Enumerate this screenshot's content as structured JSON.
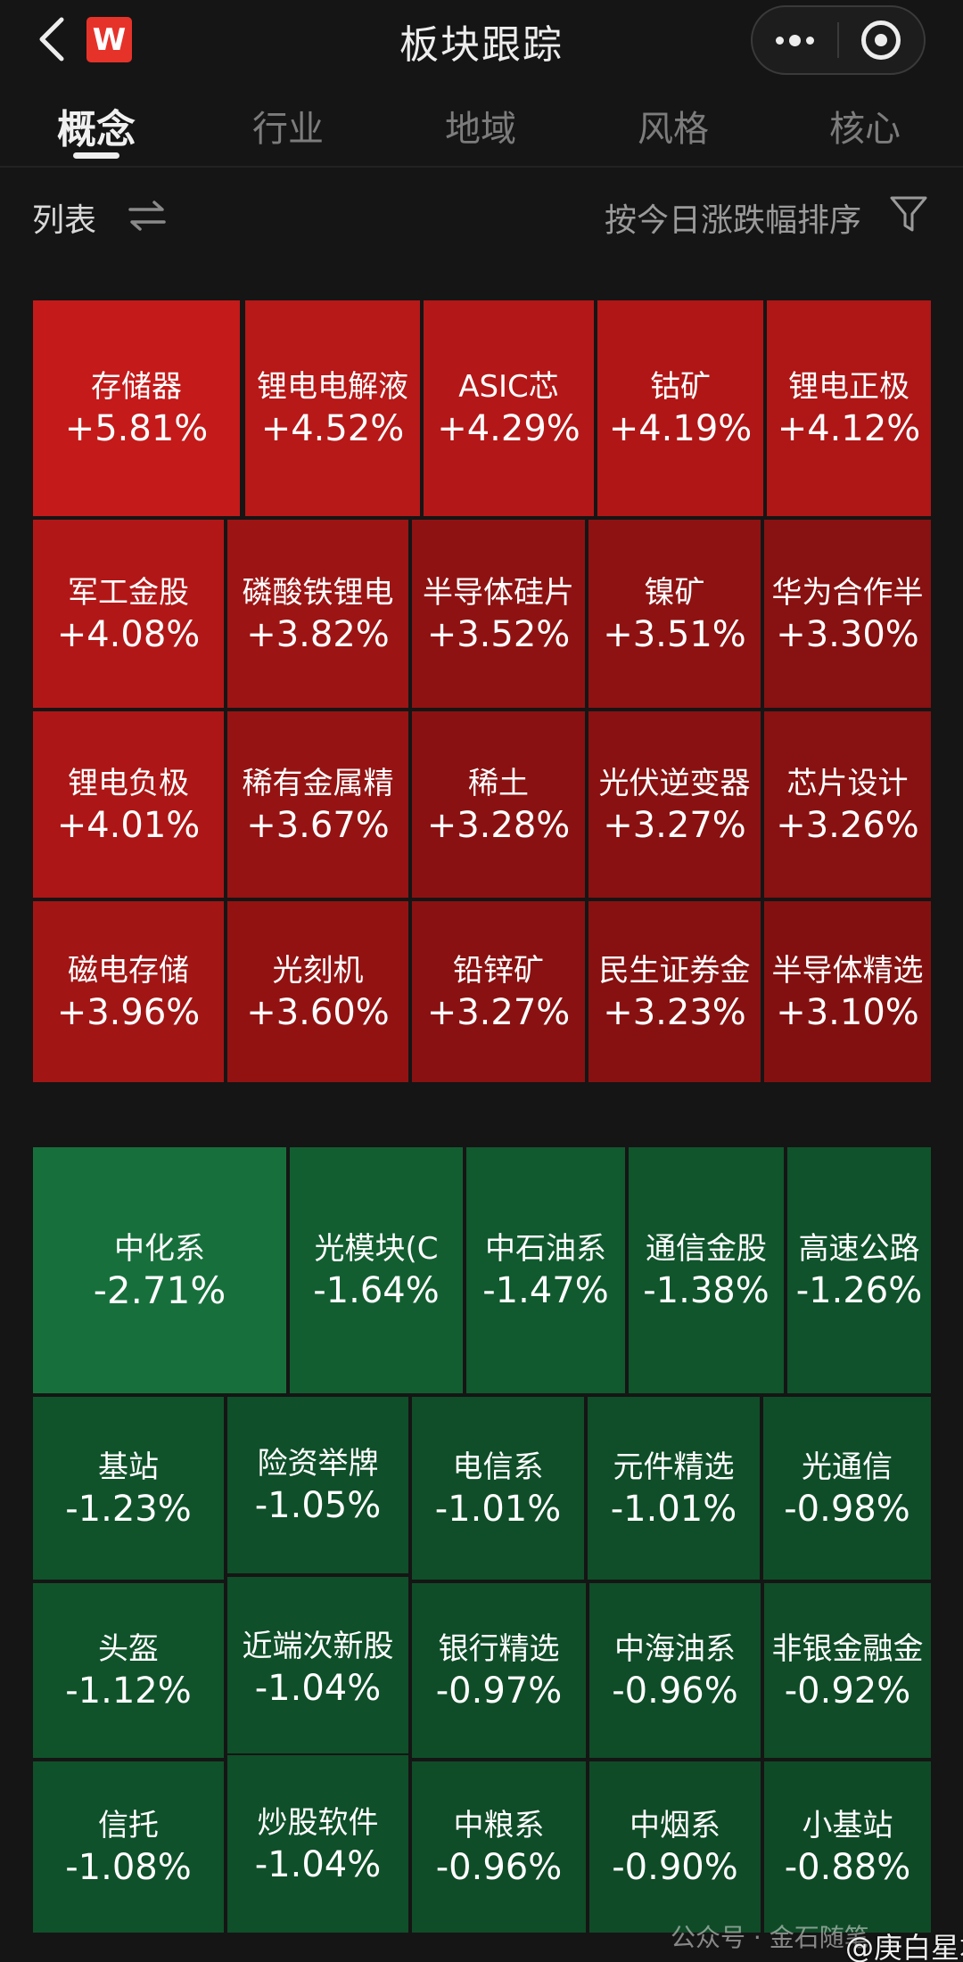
{
  "app": {
    "title": "板块跟踪",
    "logo_text": "W",
    "icons": {
      "back": "chevron-left-icon",
      "more": "more-dots-icon",
      "close": "target-circle-icon",
      "swap": "swap-arrows-icon",
      "filter": "funnel-filter-icon"
    }
  },
  "tabs": [
    {
      "label": "概念",
      "active": true
    },
    {
      "label": "行业",
      "active": false
    },
    {
      "label": "地域",
      "active": false
    },
    {
      "label": "风格",
      "active": false
    },
    {
      "label": "核心",
      "active": false
    }
  ],
  "list": {
    "label": "列表",
    "sort_label": "按今日涨跌幅排序"
  },
  "colors": {
    "up_strong": "#c41a1a",
    "up_mid": "#a41515",
    "up_weak": "#8c1212",
    "down_strong": "#17703c",
    "down_mid": "#135c30",
    "down_weak": "#0f4d28",
    "background": "#151515"
  },
  "gainers": [
    {
      "name": "存储器",
      "change": "+5.81%"
    },
    {
      "name": "锂电电解液",
      "change": "+4.52%"
    },
    {
      "name": "ASIC芯",
      "change": "+4.29%"
    },
    {
      "name": "钴矿",
      "change": "+4.19%"
    },
    {
      "name": "锂电正极",
      "change": "+4.12%"
    },
    {
      "name": "军工金股",
      "change": "+4.08%"
    },
    {
      "name": "磷酸铁锂电",
      "change": "+3.82%"
    },
    {
      "name": "半导体硅片",
      "change": "+3.52%"
    },
    {
      "name": "镍矿",
      "change": "+3.51%"
    },
    {
      "name": "华为合作半",
      "change": "+3.30%"
    },
    {
      "name": "锂电负极",
      "change": "+4.01%"
    },
    {
      "name": "稀有金属精",
      "change": "+3.67%"
    },
    {
      "name": "稀土",
      "change": "+3.28%"
    },
    {
      "name": "光伏逆变器",
      "change": "+3.27%"
    },
    {
      "name": "芯片设计",
      "change": "+3.26%"
    },
    {
      "name": "磁电存储",
      "change": "+3.96%"
    },
    {
      "name": "光刻机",
      "change": "+3.60%"
    },
    {
      "name": "铅锌矿",
      "change": "+3.27%"
    },
    {
      "name": "民生证券金",
      "change": "+3.23%"
    },
    {
      "name": "半导体精选",
      "change": "+3.10%"
    }
  ],
  "losers": [
    {
      "name": "中化系",
      "change": "-2.71%"
    },
    {
      "name": "光模块(C",
      "change": "-1.64%"
    },
    {
      "name": "中石油系",
      "change": "-1.47%"
    },
    {
      "name": "通信金股",
      "change": "-1.38%"
    },
    {
      "name": "高速公路",
      "change": "-1.26%"
    },
    {
      "name": "基站",
      "change": "-1.23%"
    },
    {
      "name": "险资举牌",
      "change": "-1.05%"
    },
    {
      "name": "电信系",
      "change": "-1.01%"
    },
    {
      "name": "元件精选",
      "change": "-1.01%"
    },
    {
      "name": "光通信",
      "change": "-0.98%"
    },
    {
      "name": "头盔",
      "change": "-1.12%"
    },
    {
      "name": "近端次新股",
      "change": "-1.04%"
    },
    {
      "name": "银行精选",
      "change": "-0.97%"
    },
    {
      "name": "中海油系",
      "change": "-0.96%"
    },
    {
      "name": "非银金融金",
      "change": "-0.92%"
    },
    {
      "name": "信托",
      "change": "-1.08%"
    },
    {
      "name": "炒股软件",
      "change": "-1.04%"
    },
    {
      "name": "中粮系",
      "change": "-0.96%"
    },
    {
      "name": "中烟系",
      "change": "-0.90%"
    },
    {
      "name": "小基站",
      "change": "-0.88%"
    }
  ],
  "watermark": "公众号 · 金石随笔",
  "weibo_tag": "@庚白星君"
}
